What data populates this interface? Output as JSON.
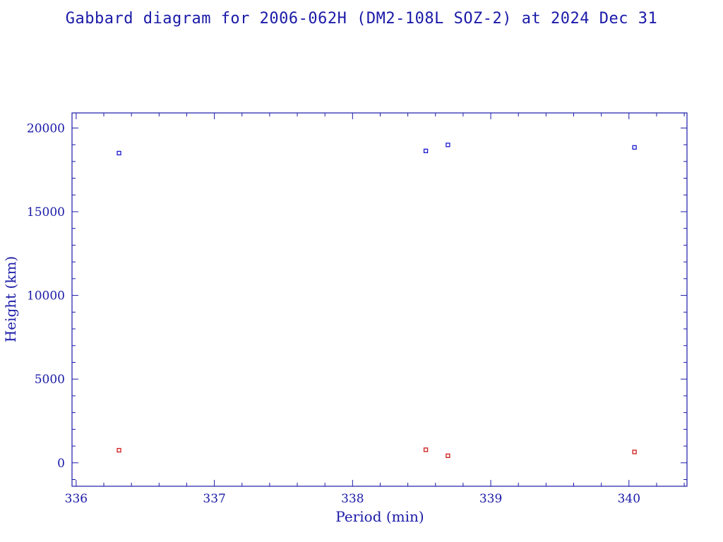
{
  "chart_data": {
    "type": "scatter",
    "title": "Gabbard diagram for 2006-062H (DM2-108L SOZ-2) at 2024 Dec 31",
    "xlabel": "Period (min)",
    "ylabel": "Height (km)",
    "xlim": [
      335.97,
      340.42
    ],
    "ylim": [
      -1400,
      20900
    ],
    "x_major_ticks": [
      336,
      337,
      338,
      339,
      340
    ],
    "x_minor_step": 0.2,
    "y_major_ticks": [
      0,
      5000,
      10000,
      15000,
      20000
    ],
    "y_minor_step": 1000,
    "grid": false,
    "legend": "none",
    "series": [
      {
        "color": "#1a1ad0",
        "points": [
          {
            "x": 336.31,
            "y": 18500
          },
          {
            "x": 338.53,
            "y": 18630
          },
          {
            "x": 338.69,
            "y": 18990
          },
          {
            "x": 340.04,
            "y": 18840
          }
        ]
      },
      {
        "color": "#d01a1a",
        "points": [
          {
            "x": 336.31,
            "y": 750
          },
          {
            "x": 338.53,
            "y": 780
          },
          {
            "x": 338.69,
            "y": 420
          },
          {
            "x": 340.04,
            "y": 650
          }
        ]
      }
    ],
    "axis_color": "#1a1aa8"
  }
}
